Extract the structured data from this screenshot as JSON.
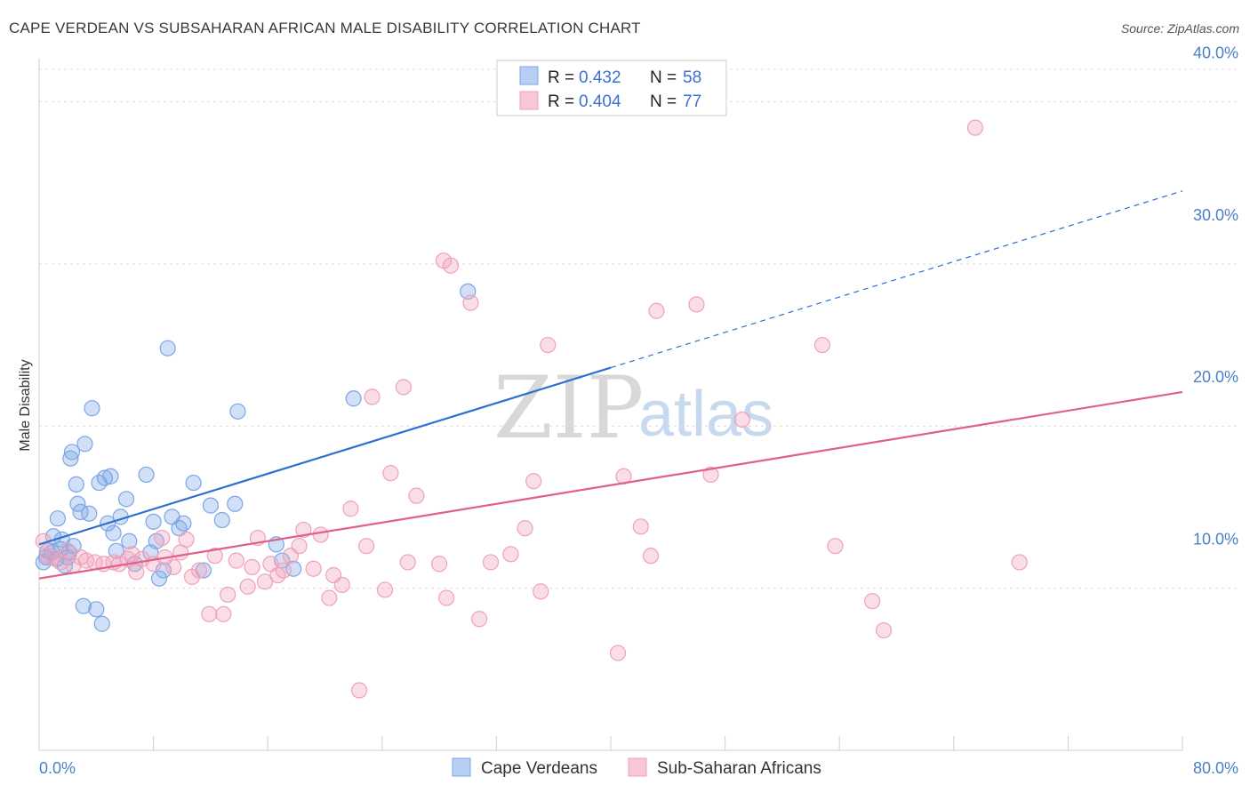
{
  "title": "CAPE VERDEAN VS SUBSAHARAN AFRICAN MALE DISABILITY CORRELATION CHART",
  "source": "Source: ZipAtlas.com",
  "watermark": {
    "zip": "ZIP",
    "atlas": "atlas"
  },
  "legend": {
    "rows": [
      {
        "r_label": "R =",
        "r_value": "0.432",
        "n_label": "N =",
        "n_value": "58"
      },
      {
        "r_label": "R =",
        "r_value": "0.404",
        "n_label": "N =",
        "n_value": "77"
      }
    ]
  },
  "chart_data": {
    "type": "scatter",
    "title": "CAPE VERDEAN VS SUBSAHARAN AFRICAN MALE DISABILITY CORRELATION CHART",
    "xlabel": "",
    "ylabel": "Male Disability",
    "xlim": [
      0,
      80
    ],
    "ylim": [
      0,
      42
    ],
    "x_tick_labels": [
      "0.0%",
      "80.0%"
    ],
    "y_ticks": [
      10,
      20,
      30,
      40
    ],
    "y_tick_labels": [
      "10.0%",
      "20.0%",
      "30.0%",
      "40.0%"
    ],
    "grid": true,
    "legend_position": "top-center",
    "series": [
      {
        "name": "Cape Verdeans",
        "color": "#7aa6e6",
        "line_color": "#2e6fd0",
        "r": 0.432,
        "n": 58,
        "trend": {
          "x0": 0,
          "y0": 12.7,
          "x1": 80,
          "y1": 34.5,
          "solid_until": 40
        },
        "points": [
          [
            0.3,
            11.6
          ],
          [
            0.5,
            11.9
          ],
          [
            0.6,
            12.3
          ],
          [
            0.9,
            12.2
          ],
          [
            1.0,
            13.2
          ],
          [
            1.2,
            11.8
          ],
          [
            1.3,
            14.3
          ],
          [
            1.5,
            12.4
          ],
          [
            1.6,
            13.0
          ],
          [
            1.8,
            11.4
          ],
          [
            2.0,
            11.9
          ],
          [
            2.1,
            12.2
          ],
          [
            2.2,
            18.0
          ],
          [
            2.3,
            18.4
          ],
          [
            2.4,
            12.6
          ],
          [
            2.6,
            16.4
          ],
          [
            2.7,
            15.2
          ],
          [
            2.9,
            14.7
          ],
          [
            3.1,
            8.9
          ],
          [
            3.2,
            18.9
          ],
          [
            3.5,
            14.6
          ],
          [
            3.7,
            21.1
          ],
          [
            4.0,
            8.7
          ],
          [
            4.2,
            16.5
          ],
          [
            4.4,
            7.8
          ],
          [
            4.6,
            16.8
          ],
          [
            4.8,
            14.0
          ],
          [
            5.0,
            16.9
          ],
          [
            5.2,
            13.4
          ],
          [
            5.4,
            12.3
          ],
          [
            5.7,
            14.4
          ],
          [
            6.1,
            15.5
          ],
          [
            6.3,
            12.9
          ],
          [
            6.7,
            11.5
          ],
          [
            7.5,
            17.0
          ],
          [
            7.8,
            12.2
          ],
          [
            8.0,
            14.1
          ],
          [
            8.2,
            12.9
          ],
          [
            8.4,
            10.6
          ],
          [
            8.7,
            11.1
          ],
          [
            9.0,
            24.8
          ],
          [
            9.3,
            14.4
          ],
          [
            9.8,
            13.7
          ],
          [
            10.1,
            14.0
          ],
          [
            10.8,
            16.5
          ],
          [
            11.5,
            11.1
          ],
          [
            12.0,
            15.1
          ],
          [
            12.8,
            14.2
          ],
          [
            13.7,
            15.2
          ],
          [
            13.9,
            20.9
          ],
          [
            16.6,
            12.7
          ],
          [
            17.0,
            11.7
          ],
          [
            17.8,
            11.2
          ],
          [
            22.0,
            21.7
          ],
          [
            30.0,
            28.3
          ]
        ]
      },
      {
        "name": "Sub-Saharan Africans",
        "color": "#f0a0bb",
        "line_color": "#e0608a",
        "r": 0.404,
        "n": 77,
        "trend": {
          "x0": 0,
          "y0": 10.6,
          "x1": 80,
          "y1": 22.1,
          "solid_until": 80
        },
        "points": [
          [
            0.3,
            12.9
          ],
          [
            0.6,
            12.0
          ],
          [
            1.0,
            11.9
          ],
          [
            1.5,
            11.6
          ],
          [
            2.0,
            12.3
          ],
          [
            2.4,
            11.4
          ],
          [
            2.9,
            11.9
          ],
          [
            3.3,
            11.7
          ],
          [
            3.9,
            11.6
          ],
          [
            4.5,
            11.5
          ],
          [
            5.2,
            11.6
          ],
          [
            5.6,
            11.5
          ],
          [
            6.2,
            11.8
          ],
          [
            6.5,
            12.1
          ],
          [
            6.8,
            11.0
          ],
          [
            7.2,
            11.8
          ],
          [
            8.0,
            11.5
          ],
          [
            8.6,
            13.1
          ],
          [
            8.8,
            11.9
          ],
          [
            9.4,
            11.3
          ],
          [
            9.9,
            12.2
          ],
          [
            10.3,
            13.0
          ],
          [
            10.7,
            10.7
          ],
          [
            11.2,
            11.1
          ],
          [
            11.9,
            8.4
          ],
          [
            12.3,
            12.0
          ],
          [
            12.9,
            8.4
          ],
          [
            13.2,
            9.6
          ],
          [
            13.8,
            11.7
          ],
          [
            14.6,
            10.1
          ],
          [
            14.9,
            11.3
          ],
          [
            15.3,
            13.1
          ],
          [
            15.8,
            10.4
          ],
          [
            16.2,
            11.5
          ],
          [
            16.7,
            10.8
          ],
          [
            17.1,
            11.1
          ],
          [
            17.6,
            12.0
          ],
          [
            18.2,
            12.6
          ],
          [
            18.5,
            13.6
          ],
          [
            19.2,
            11.2
          ],
          [
            19.7,
            13.3
          ],
          [
            20.3,
            9.4
          ],
          [
            20.6,
            10.8
          ],
          [
            21.2,
            10.2
          ],
          [
            21.8,
            14.9
          ],
          [
            22.4,
            3.7
          ],
          [
            22.9,
            12.6
          ],
          [
            23.3,
            21.8
          ],
          [
            24.2,
            9.9
          ],
          [
            24.6,
            17.1
          ],
          [
            25.5,
            22.4
          ],
          [
            25.8,
            11.6
          ],
          [
            26.4,
            15.7
          ],
          [
            28.0,
            11.5
          ],
          [
            28.3,
            30.2
          ],
          [
            28.5,
            9.4
          ],
          [
            28.8,
            29.9
          ],
          [
            30.2,
            27.6
          ],
          [
            30.8,
            8.1
          ],
          [
            31.6,
            11.6
          ],
          [
            33.0,
            12.1
          ],
          [
            34.0,
            13.7
          ],
          [
            34.6,
            16.6
          ],
          [
            35.1,
            9.8
          ],
          [
            35.6,
            25.0
          ],
          [
            40.5,
            6.0
          ],
          [
            40.9,
            16.9
          ],
          [
            42.1,
            13.8
          ],
          [
            42.8,
            12.0
          ],
          [
            43.2,
            27.1
          ],
          [
            46.0,
            27.5
          ],
          [
            47.0,
            17.0
          ],
          [
            49.2,
            20.4
          ],
          [
            54.8,
            25.0
          ],
          [
            55.7,
            12.6
          ],
          [
            58.3,
            9.2
          ],
          [
            59.1,
            7.4
          ],
          [
            65.5,
            38.4
          ],
          [
            68.6,
            11.6
          ]
        ]
      }
    ]
  }
}
